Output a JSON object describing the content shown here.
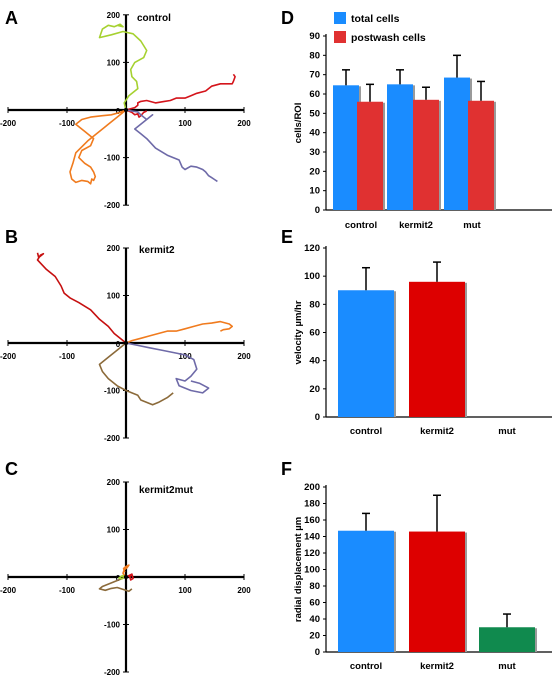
{
  "panel_letters": {
    "A": "A",
    "B": "B",
    "C": "C",
    "D": "D",
    "E": "E",
    "F": "F"
  },
  "colors": {
    "blue": "#1a8cff",
    "red_d": "#e03131",
    "red": "#dd0000",
    "green": "#108a4e",
    "track_orange": "#f07b1e",
    "track_red": "#d4141b",
    "track_purple": "#6e6aa8",
    "track_lime": "#a6d130",
    "track_brown": "#8b6a3a",
    "track_darkred": "#c61010"
  },
  "chart_data": [
    {
      "panel": "A",
      "type": "scatter",
      "title": "control",
      "xlim": [
        -200,
        200
      ],
      "ylim": [
        -200,
        200
      ],
      "x_ticks": [
        -200,
        -100,
        0,
        100,
        200
      ],
      "y_ticks": [
        200,
        100,
        0,
        -100,
        -200
      ],
      "series": [
        {
          "color": "track_lime",
          "x": [
            0,
            -3,
            5,
            20,
            18,
            10,
            8,
            15,
            30,
            35,
            25,
            12,
            -5,
            -25,
            -45,
            -40,
            -30,
            -20,
            -10,
            -5,
            -15
          ],
          "y": [
            0,
            15,
            30,
            45,
            60,
            70,
            85,
            100,
            110,
            125,
            145,
            160,
            165,
            158,
            152,
            170,
            178,
            175,
            180,
            175,
            178
          ]
        },
        {
          "color": "track_orange",
          "x": [
            0,
            -10,
            -25,
            -40,
            -60,
            -75,
            -85,
            -70,
            -55,
            -60,
            -75,
            -80,
            -70,
            -60,
            -55,
            -52,
            -55,
            -58,
            -60,
            -65,
            -75,
            -85,
            -92,
            -95,
            -90,
            -85,
            -65,
            -45,
            -30,
            -15,
            -5,
            0
          ],
          "y": [
            0,
            -5,
            -10,
            -12,
            -15,
            -20,
            -30,
            -45,
            -60,
            -75,
            -85,
            -100,
            -112,
            -120,
            -130,
            -140,
            -148,
            -145,
            -155,
            -150,
            -148,
            -152,
            -145,
            -130,
            -112,
            -90,
            -65,
            -45,
            -30,
            -15,
            -5,
            0
          ]
        },
        {
          "color": "track_red",
          "x": [
            0,
            15,
            20,
            20,
            25,
            35,
            50,
            65,
            75,
            85,
            100,
            110,
            120,
            135,
            145,
            160,
            170,
            180,
            182,
            185,
            182
          ],
          "y": [
            0,
            5,
            10,
            15,
            18,
            20,
            15,
            18,
            20,
            25,
            25,
            30,
            35,
            40,
            50,
            55,
            55,
            55,
            60,
            70,
            75
          ]
        },
        {
          "color": "track_red",
          "x": [
            0,
            10,
            15,
            20,
            22,
            25,
            30,
            35
          ],
          "y": [
            0,
            -5,
            -10,
            -8,
            -15,
            -12,
            -5,
            -2
          ]
        },
        {
          "color": "track_purple",
          "x": [
            0,
            10,
            20,
            25,
            30,
            35,
            40,
            45,
            30,
            15,
            25,
            35,
            50,
            70,
            80,
            90,
            95,
            100,
            110,
            120,
            130,
            135,
            140,
            145,
            150,
            155
          ],
          "y": [
            0,
            -2,
            -4,
            -10,
            -15,
            -20,
            -15,
            -10,
            -25,
            -40,
            -50,
            -60,
            -80,
            -95,
            -100,
            -105,
            -120,
            -125,
            -118,
            -120,
            -125,
            -130,
            -138,
            -142,
            -146,
            -150
          ]
        }
      ]
    },
    {
      "panel": "B",
      "type": "scatter",
      "title": "kermit2",
      "xlim": [
        -200,
        200
      ],
      "ylim": [
        -200,
        200
      ],
      "x_ticks": [
        -200,
        -100,
        0,
        100,
        200
      ],
      "y_ticks": [
        200,
        100,
        0,
        -100,
        -200
      ],
      "series": [
        {
          "color": "track_darkred",
          "x": [
            0,
            -10,
            -20,
            -30,
            -45,
            -60,
            -80,
            -95,
            -105,
            -110,
            -120,
            -135,
            -150,
            -145,
            -140,
            -148,
            -150
          ],
          "y": [
            0,
            10,
            20,
            35,
            50,
            70,
            85,
            95,
            105,
            120,
            140,
            155,
            175,
            185,
            188,
            180,
            190
          ]
        },
        {
          "color": "track_orange",
          "x": [
            0,
            10,
            25,
            40,
            55,
            70,
            85,
            100,
            115,
            130,
            145,
            160,
            175,
            180,
            175,
            165,
            160
          ],
          "y": [
            0,
            5,
            10,
            15,
            20,
            25,
            25,
            30,
            35,
            40,
            42,
            45,
            40,
            35,
            30,
            28,
            25
          ]
        },
        {
          "color": "track_purple",
          "x": [
            0,
            20,
            40,
            60,
            80,
            100,
            115,
            120,
            110,
            100,
            85,
            90,
            110,
            130,
            140,
            125,
            110
          ],
          "y": [
            0,
            -5,
            -10,
            -15,
            -20,
            -25,
            -35,
            -55,
            -70,
            -80,
            -75,
            -90,
            -100,
            -105,
            -95,
            -85,
            -80
          ]
        },
        {
          "color": "track_brown",
          "x": [
            0,
            -15,
            -30,
            -45,
            -40,
            -30,
            -15,
            0,
            10,
            20,
            25,
            35,
            45,
            55,
            70,
            80
          ],
          "y": [
            0,
            -15,
            -30,
            -45,
            -60,
            -75,
            -90,
            -100,
            -105,
            -110,
            -120,
            -125,
            -130,
            -125,
            -115,
            -105
          ]
        }
      ]
    },
    {
      "panel": "C",
      "type": "scatter",
      "title": "kermit2mut",
      "xlim": [
        -200,
        200
      ],
      "ylim": [
        -200,
        200
      ],
      "x_ticks": [
        -200,
        -100,
        0,
        100,
        200
      ],
      "y_ticks": [
        200,
        100,
        0,
        -100,
        -200
      ],
      "series": [
        {
          "color": "track_orange",
          "x": [
            0,
            -5,
            -3,
            2,
            5,
            0,
            -4,
            -2
          ],
          "y": [
            0,
            8,
            15,
            20,
            25,
            22,
            18,
            10
          ]
        },
        {
          "color": "track_red",
          "x": [
            0,
            5,
            10,
            12,
            8,
            6,
            10,
            5
          ],
          "y": [
            0,
            3,
            6,
            -3,
            -6,
            2,
            5,
            0
          ]
        },
        {
          "color": "track_brown",
          "x": [
            0,
            -10,
            -20,
            -30,
            -40,
            -45,
            -35,
            -25,
            -15,
            -5,
            5,
            10
          ],
          "y": [
            0,
            -5,
            -10,
            -15,
            -20,
            -25,
            -28,
            -24,
            -22,
            -26,
            -30,
            -25
          ]
        },
        {
          "color": "track_lime",
          "x": [
            0,
            -8,
            -12,
            -6,
            -2
          ],
          "y": [
            0,
            -4,
            -2,
            3,
            1
          ]
        }
      ]
    },
    {
      "panel": "D",
      "type": "bar",
      "categories": [
        "control",
        "kermit2",
        "mut"
      ],
      "ylabel": "cells/ROI",
      "ylim": [
        0,
        90
      ],
      "y_ticks": [
        0,
        10,
        20,
        30,
        40,
        50,
        60,
        70,
        80,
        90
      ],
      "series": [
        {
          "name": "total cells",
          "color": "blue",
          "values": [
            64.5,
            65,
            68.5
          ],
          "errors": [
            8,
            7.5,
            11.5
          ]
        },
        {
          "name": "postwash cells",
          "color": "red_d",
          "values": [
            56,
            57,
            56.5
          ],
          "errors": [
            9,
            6.5,
            10
          ]
        }
      ]
    },
    {
      "panel": "E",
      "type": "bar",
      "categories": [
        "control",
        "kermit2",
        "mut"
      ],
      "ylabel": "velocity µm/hr",
      "ylim": [
        0,
        120
      ],
      "y_ticks": [
        0,
        20,
        40,
        60,
        80,
        100,
        120
      ],
      "series": [
        {
          "colors": [
            "blue",
            "red",
            "green"
          ],
          "values": [
            90,
            96,
            null
          ],
          "errors": [
            16,
            14,
            null
          ]
        }
      ]
    },
    {
      "panel": "F",
      "type": "bar",
      "categories": [
        "control",
        "kermit2",
        "mut"
      ],
      "ylabel": "radial displacement µm",
      "ylim": [
        0,
        200
      ],
      "y_ticks": [
        0,
        20,
        40,
        60,
        80,
        100,
        120,
        140,
        160,
        180,
        200
      ],
      "series": [
        {
          "colors": [
            "blue",
            "red",
            "green"
          ],
          "values": [
            147,
            146,
            30
          ],
          "errors": [
            21,
            44,
            16
          ]
        }
      ]
    }
  ]
}
